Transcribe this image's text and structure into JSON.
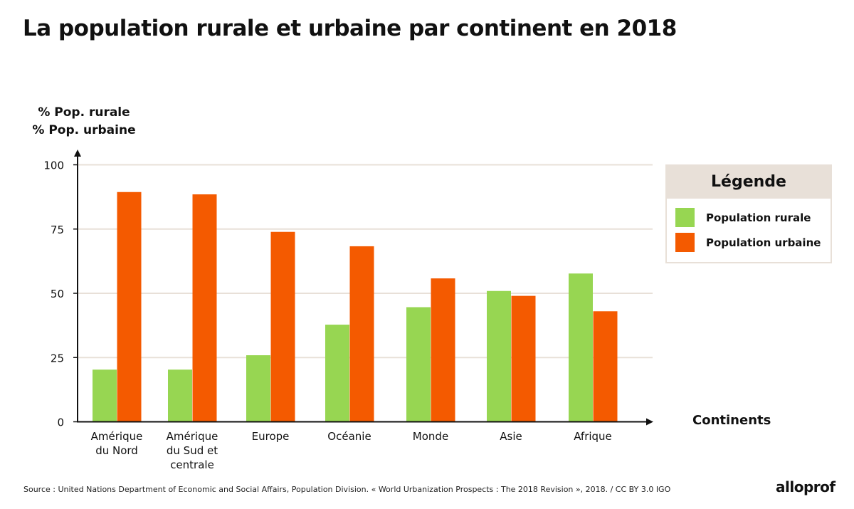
{
  "title": "La population rurale et urbaine par continent en 2018",
  "source": "Source : United Nations Department of Economic and Social Affairs, Population Division. « World Urbanization Prospects : The 2018 Revision », 2018. / CC BY 3.0 IGO",
  "logo": "alloprof",
  "legend": {
    "title": "Légende",
    "items": [
      {
        "label": "Population rurale",
        "color": "#97d652"
      },
      {
        "label": "Population urbaine",
        "color": "#f45a00"
      }
    ]
  },
  "chart_data": {
    "type": "bar",
    "title": "La population rurale et urbaine par continent en 2018",
    "ylabel": [
      "% Pop. rurale",
      "% Pop. urbaine"
    ],
    "xlabel": "Continents",
    "ylim": [
      0,
      100
    ],
    "yticks": [
      "0",
      "25",
      "50",
      "75",
      "100"
    ],
    "grid": true,
    "legend_position": "right",
    "categories": [
      [
        "Amérique",
        "du Nord"
      ],
      [
        "Amérique",
        "du Sud et",
        "centrale"
      ],
      [
        "Europe"
      ],
      [
        "Océanie"
      ],
      [
        "Monde"
      ],
      [
        "Asie"
      ],
      [
        "Afrique"
      ]
    ],
    "series": [
      {
        "name": "Population rurale",
        "color": "#97d652",
        "values": [
          20.3,
          20.3,
          25.9,
          37.8,
          44.6,
          50.9,
          57.7
        ]
      },
      {
        "name": "Population urbaine",
        "color": "#f45a00",
        "values": [
          89.4,
          88.5,
          73.9,
          68.3,
          55.8,
          49.0,
          43.0
        ]
      }
    ]
  }
}
